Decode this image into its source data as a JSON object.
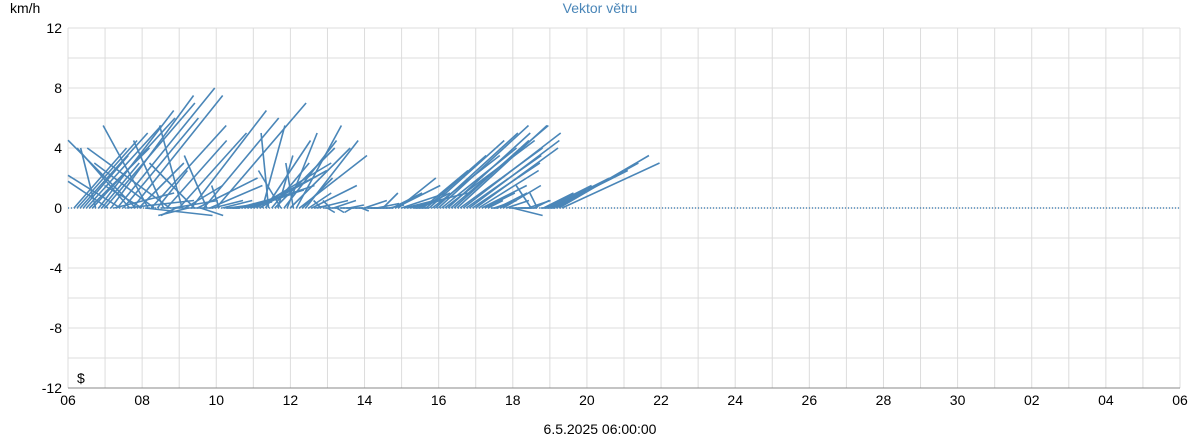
{
  "chart_data": {
    "type": "vector",
    "title": "Vektor větru",
    "ylabel": "km/h",
    "footer": "6.5.2025 06:00:00",
    "marker": "$",
    "ylim": [
      -12,
      12
    ],
    "yticks": [
      "12",
      "8",
      "4",
      "0",
      "-4",
      "-8",
      "-12"
    ],
    "xticks": [
      "06",
      "08",
      "10",
      "12",
      "14",
      "16",
      "18",
      "20",
      "22",
      "24",
      "26",
      "28",
      "30",
      "02",
      "04",
      "06"
    ],
    "x_start": "06",
    "hours_per_tick": 48,
    "grid": true,
    "color": "#4a86b8",
    "vector_step_hours": 1,
    "series": [
      {
        "hour": 0,
        "u": 3.5,
        "v": 4.0
      },
      {
        "hour": 2,
        "u": 4.0,
        "v": 4.5
      },
      {
        "hour": 4,
        "u": 4.5,
        "v": 5.0
      },
      {
        "hour": 6,
        "u": 3.0,
        "v": 3.5
      },
      {
        "hour": 8,
        "u": 5.0,
        "v": 5.5
      },
      {
        "hour": 10,
        "u": 4.0,
        "v": 4.0
      },
      {
        "hour": 12,
        "u": 5.5,
        "v": 6.0
      },
      {
        "hour": 14,
        "u": -1.0,
        "v": 4.0
      },
      {
        "hour": 16,
        "u": 5.0,
        "v": 6.5
      },
      {
        "hour": 18,
        "u": 2.5,
        "v": 3.0
      },
      {
        "hour": 20,
        "u": 6.0,
        "v": 7.0
      },
      {
        "hour": 22,
        "u": -3.0,
        "v": 2.0
      },
      {
        "hour": 24,
        "u": 5.5,
        "v": 7.5
      },
      {
        "hour": 26,
        "u": 4.0,
        "v": 1.0
      },
      {
        "hour": 28,
        "u": 6.5,
        "v": 8.0
      },
      {
        "hour": 30,
        "u": -4.0,
        "v": 2.5
      },
      {
        "hour": 32,
        "u": 5.0,
        "v": 6.0
      },
      {
        "hour": 34,
        "u": 4.5,
        "v": 0.5
      },
      {
        "hour": 36,
        "u": -3.5,
        "v": 4.0
      },
      {
        "hour": 38,
        "u": 6.0,
        "v": 7.5
      },
      {
        "hour": 40,
        "u": -5.0,
        "v": 5.0
      },
      {
        "hour": 42,
        "u": 3.0,
        "v": 3.0
      },
      {
        "hour": 44,
        "u": -2.5,
        "v": 1.5
      },
      {
        "hour": 46,
        "u": 4.5,
        "v": -0.5
      },
      {
        "hour": 48,
        "u": -3.0,
        "v": 5.5
      },
      {
        "hour": 50,
        "u": 5.0,
        "v": 5.5
      },
      {
        "hour": 52,
        "u": -4.0,
        "v": 3.0
      },
      {
        "hour": 54,
        "u": 2.0,
        "v": 2.5
      },
      {
        "hour": 56,
        "u": 3.5,
        "v": 0.0
      },
      {
        "hour": 58,
        "u": -2.0,
        "v": 4.5
      },
      {
        "hour": 60,
        "u": 4.0,
        "v": 4.5
      },
      {
        "hour": 62,
        "u": -5.5,
        "v": 4.0
      },
      {
        "hour": 64,
        "u": 3.0,
        "v": 0.5
      },
      {
        "hour": 66,
        "u": -1.0,
        "v": -0.5
      },
      {
        "hour": 68,
        "u": 4.5,
        "v": 5.0
      },
      {
        "hour": 70,
        "u": -1.5,
        "v": 5.5
      },
      {
        "hour": 72,
        "u": 2.5,
        "v": 1.5
      },
      {
        "hour": 74,
        "u": -2.0,
        "v": -0.5
      },
      {
        "hour": 76,
        "u": 5.0,
        "v": 6.5
      },
      {
        "hour": 78,
        "u": -3.0,
        "v": 3.0
      },
      {
        "hour": 80,
        "u": 4.0,
        "v": 2.0
      },
      {
        "hour": 82,
        "u": 1.5,
        "v": -0.5
      },
      {
        "hour": 84,
        "u": 5.0,
        "v": 6.0
      },
      {
        "hour": 86,
        "u": -1.5,
        "v": 3.5
      },
      {
        "hour": 88,
        "u": 3.5,
        "v": 1.5
      },
      {
        "hour": 90,
        "u": 2.0,
        "v": 0.5
      },
      {
        "hour": 92,
        "u": 6.0,
        "v": 7.0
      },
      {
        "hour": 94,
        "u": -0.5,
        "v": 1.5
      },
      {
        "hour": 96,
        "u": 2.0,
        "v": 0.5
      },
      {
        "hour": 98,
        "u": 1.0,
        "v": 0.0
      },
      {
        "hour": 100,
        "u": 1.5,
        "v": 0.2
      },
      {
        "hour": 102,
        "u": 0.5,
        "v": 0.0
      },
      {
        "hour": 104,
        "u": 2.5,
        "v": 0.4
      },
      {
        "hour": 106,
        "u": 3.0,
        "v": 0.8
      },
      {
        "hour": 108,
        "u": 3.5,
        "v": 1.0
      },
      {
        "hour": 110,
        "u": 4.0,
        "v": 1.2
      },
      {
        "hour": 112,
        "u": 4.5,
        "v": 1.5
      },
      {
        "hour": 114,
        "u": 3.0,
        "v": 1.0
      },
      {
        "hour": 116,
        "u": 4.0,
        "v": 2.0
      },
      {
        "hour": 118,
        "u": 5.0,
        "v": 3.0
      },
      {
        "hour": 120,
        "u": 4.5,
        "v": 2.5
      },
      {
        "hour": 122,
        "u": 1.5,
        "v": 5.5
      },
      {
        "hour": 124,
        "u": 3.0,
        "v": 4.5
      },
      {
        "hour": 126,
        "u": -0.5,
        "v": 5.0
      },
      {
        "hour": 128,
        "u": 2.5,
        "v": 3.0
      },
      {
        "hour": 130,
        "u": 4.0,
        "v": 4.0
      },
      {
        "hour": 132,
        "u": 1.0,
        "v": 3.5
      },
      {
        "hour": 134,
        "u": -1.5,
        "v": 2.5
      },
      {
        "hour": 136,
        "u": 3.5,
        "v": 4.5
      },
      {
        "hour": 138,
        "u": 2.0,
        "v": 5.0
      },
      {
        "hour": 140,
        "u": 4.0,
        "v": 4.0
      },
      {
        "hour": 142,
        "u": -0.5,
        "v": 3.0
      },
      {
        "hour": 144,
        "u": 3.0,
        "v": 5.5
      },
      {
        "hour": 146,
        "u": 4.5,
        "v": 3.5
      },
      {
        "hour": 148,
        "u": 2.0,
        "v": 2.0
      },
      {
        "hour": 150,
        "u": 3.5,
        "v": 4.5
      },
      {
        "hour": 152,
        "u": 1.5,
        "v": 1.0
      },
      {
        "hour": 154,
        "u": 3.0,
        "v": 1.5
      },
      {
        "hour": 156,
        "u": 1.0,
        "v": 0.2
      },
      {
        "hour": 158,
        "u": 2.0,
        "v": 0.5
      },
      {
        "hour": 160,
        "u": -0.5,
        "v": 0.5
      },
      {
        "hour": 162,
        "u": 1.0,
        "v": 0.0
      },
      {
        "hour": 164,
        "u": 0.5,
        "v": -0.3
      },
      {
        "hour": 166,
        "u": -0.5,
        "v": 0.5
      },
      {
        "hour": 168,
        "u": 1.5,
        "v": 0.5
      },
      {
        "hour": 170,
        "u": 0.5,
        "v": -0.3
      },
      {
        "hour": 172,
        "u": 0.3,
        "v": 0.0
      },
      {
        "hour": 174,
        "u": 1.0,
        "v": 0.0
      },
      {
        "hour": 176,
        "u": 0.5,
        "v": 0.0
      },
      {
        "hour": 178,
        "u": 1.0,
        "v": 0.2
      },
      {
        "hour": 180,
        "u": -0.5,
        "v": -0.3
      },
      {
        "hour": 182,
        "u": 0.5,
        "v": 0.0
      },
      {
        "hour": 184,
        "u": 1.5,
        "v": 0.0
      },
      {
        "hour": 186,
        "u": 0.5,
        "v": -0.2
      },
      {
        "hour": 188,
        "u": 1.5,
        "v": 0.5
      },
      {
        "hour": 190,
        "u": 0.8,
        "v": 0.0
      },
      {
        "hour": 192,
        "u": 0.5,
        "v": 0.0
      },
      {
        "hour": 194,
        "u": 1.0,
        "v": 0.0
      },
      {
        "hour": 196,
        "u": 1.5,
        "v": 0.3
      },
      {
        "hour": 198,
        "u": 0.5,
        "v": 0.0
      },
      {
        "hour": 200,
        "u": 1.0,
        "v": 1.0
      },
      {
        "hour": 202,
        "u": 0.5,
        "v": 0.0
      },
      {
        "hour": 204,
        "u": 1.0,
        "v": 0.2
      },
      {
        "hour": 206,
        "u": 2.0,
        "v": 1.0
      },
      {
        "hour": 208,
        "u": 3.0,
        "v": 1.5
      },
      {
        "hour": 210,
        "u": 2.5,
        "v": 2.0
      },
      {
        "hour": 212,
        "u": 3.0,
        "v": 1.0
      },
      {
        "hour": 214,
        "u": 2.0,
        "v": 0.5
      },
      {
        "hour": 216,
        "u": 4.0,
        "v": 1.0
      },
      {
        "hour": 218,
        "u": 2.0,
        "v": 0.5
      },
      {
        "hour": 220,
        "u": 1.0,
        "v": 0.0
      },
      {
        "hour": 222,
        "u": 1.5,
        "v": 0.5
      },
      {
        "hour": 224,
        "u": 2.0,
        "v": 1.0
      },
      {
        "hour": 226,
        "u": 3.0,
        "v": 2.5
      },
      {
        "hour": 228,
        "u": 4.0,
        "v": 3.5
      },
      {
        "hour": 230,
        "u": 5.0,
        "v": 4.5
      },
      {
        "hour": 232,
        "u": 4.5,
        "v": 3.5
      },
      {
        "hour": 234,
        "u": 5.5,
        "v": 5.0
      },
      {
        "hour": 236,
        "u": 6.0,
        "v": 5.5
      },
      {
        "hour": 238,
        "u": 5.0,
        "v": 4.0
      },
      {
        "hour": 240,
        "u": 6.0,
        "v": 4.5
      },
      {
        "hour": 242,
        "u": 5.5,
        "v": 5.0
      },
      {
        "hour": 244,
        "u": 6.5,
        "v": 5.5
      },
      {
        "hour": 246,
        "u": 5.0,
        "v": 4.5
      },
      {
        "hour": 248,
        "u": 6.0,
        "v": 5.5
      },
      {
        "hour": 250,
        "u": 5.5,
        "v": 4.0
      },
      {
        "hour": 252,
        "u": 6.5,
        "v": 5.0
      },
      {
        "hour": 254,
        "u": 5.0,
        "v": 3.5
      },
      {
        "hour": 256,
        "u": 6.0,
        "v": 4.5
      },
      {
        "hour": 258,
        "u": 4.5,
        "v": 3.0
      },
      {
        "hour": 260,
        "u": 5.5,
        "v": 4.0
      },
      {
        "hour": 262,
        "u": 4.0,
        "v": 2.5
      },
      {
        "hour": 264,
        "u": 3.0,
        "v": 1.5
      },
      {
        "hour": 266,
        "u": 2.0,
        "v": 1.0
      },
      {
        "hour": 268,
        "u": 1.0,
        "v": 0.5
      },
      {
        "hour": 270,
        "u": 0.5,
        "v": 0.0
      },
      {
        "hour": 272,
        "u": 1.5,
        "v": 0.5
      },
      {
        "hour": 274,
        "u": 2.0,
        "v": 1.0
      },
      {
        "hour": 276,
        "u": 1.0,
        "v": 0.5
      },
      {
        "hour": 278,
        "u": 2.5,
        "v": 1.5
      },
      {
        "hour": 280,
        "u": 1.5,
        "v": 0.5
      },
      {
        "hour": 282,
        "u": 0.5,
        "v": 0.0
      },
      {
        "hour": 284,
        "u": 2.0,
        "v": -0.5
      },
      {
        "hour": 286,
        "u": 1.0,
        "v": 0.0
      },
      {
        "hour": 288,
        "u": 0.5,
        "v": 0.0
      },
      {
        "hour": 290,
        "u": 1.0,
        "v": 0.0
      },
      {
        "hour": 292,
        "u": 0.5,
        "v": 0.0
      },
      {
        "hour": 294,
        "u": 1.5,
        "v": 0.5
      },
      {
        "hour": 296,
        "u": -1.0,
        "v": 1.5
      },
      {
        "hour": 298,
        "u": 1.0,
        "v": 0.5
      },
      {
        "hour": 300,
        "u": -0.5,
        "v": 1.0
      },
      {
        "hour": 302,
        "u": 1.0,
        "v": 0.0
      },
      {
        "hour": 304,
        "u": 2.0,
        "v": 1.0
      },
      {
        "hour": 306,
        "u": 3.0,
        "v": 1.5
      },
      {
        "hour": 308,
        "u": 4.0,
        "v": 2.0
      },
      {
        "hour": 310,
        "u": 5.0,
        "v": 2.5
      },
      {
        "hour": 312,
        "u": 5.5,
        "v": 3.0
      },
      {
        "hour": 314,
        "u": 6.0,
        "v": 3.5
      },
      {
        "hour": 316,
        "u": 6.5,
        "v": 3.0
      }
    ]
  }
}
